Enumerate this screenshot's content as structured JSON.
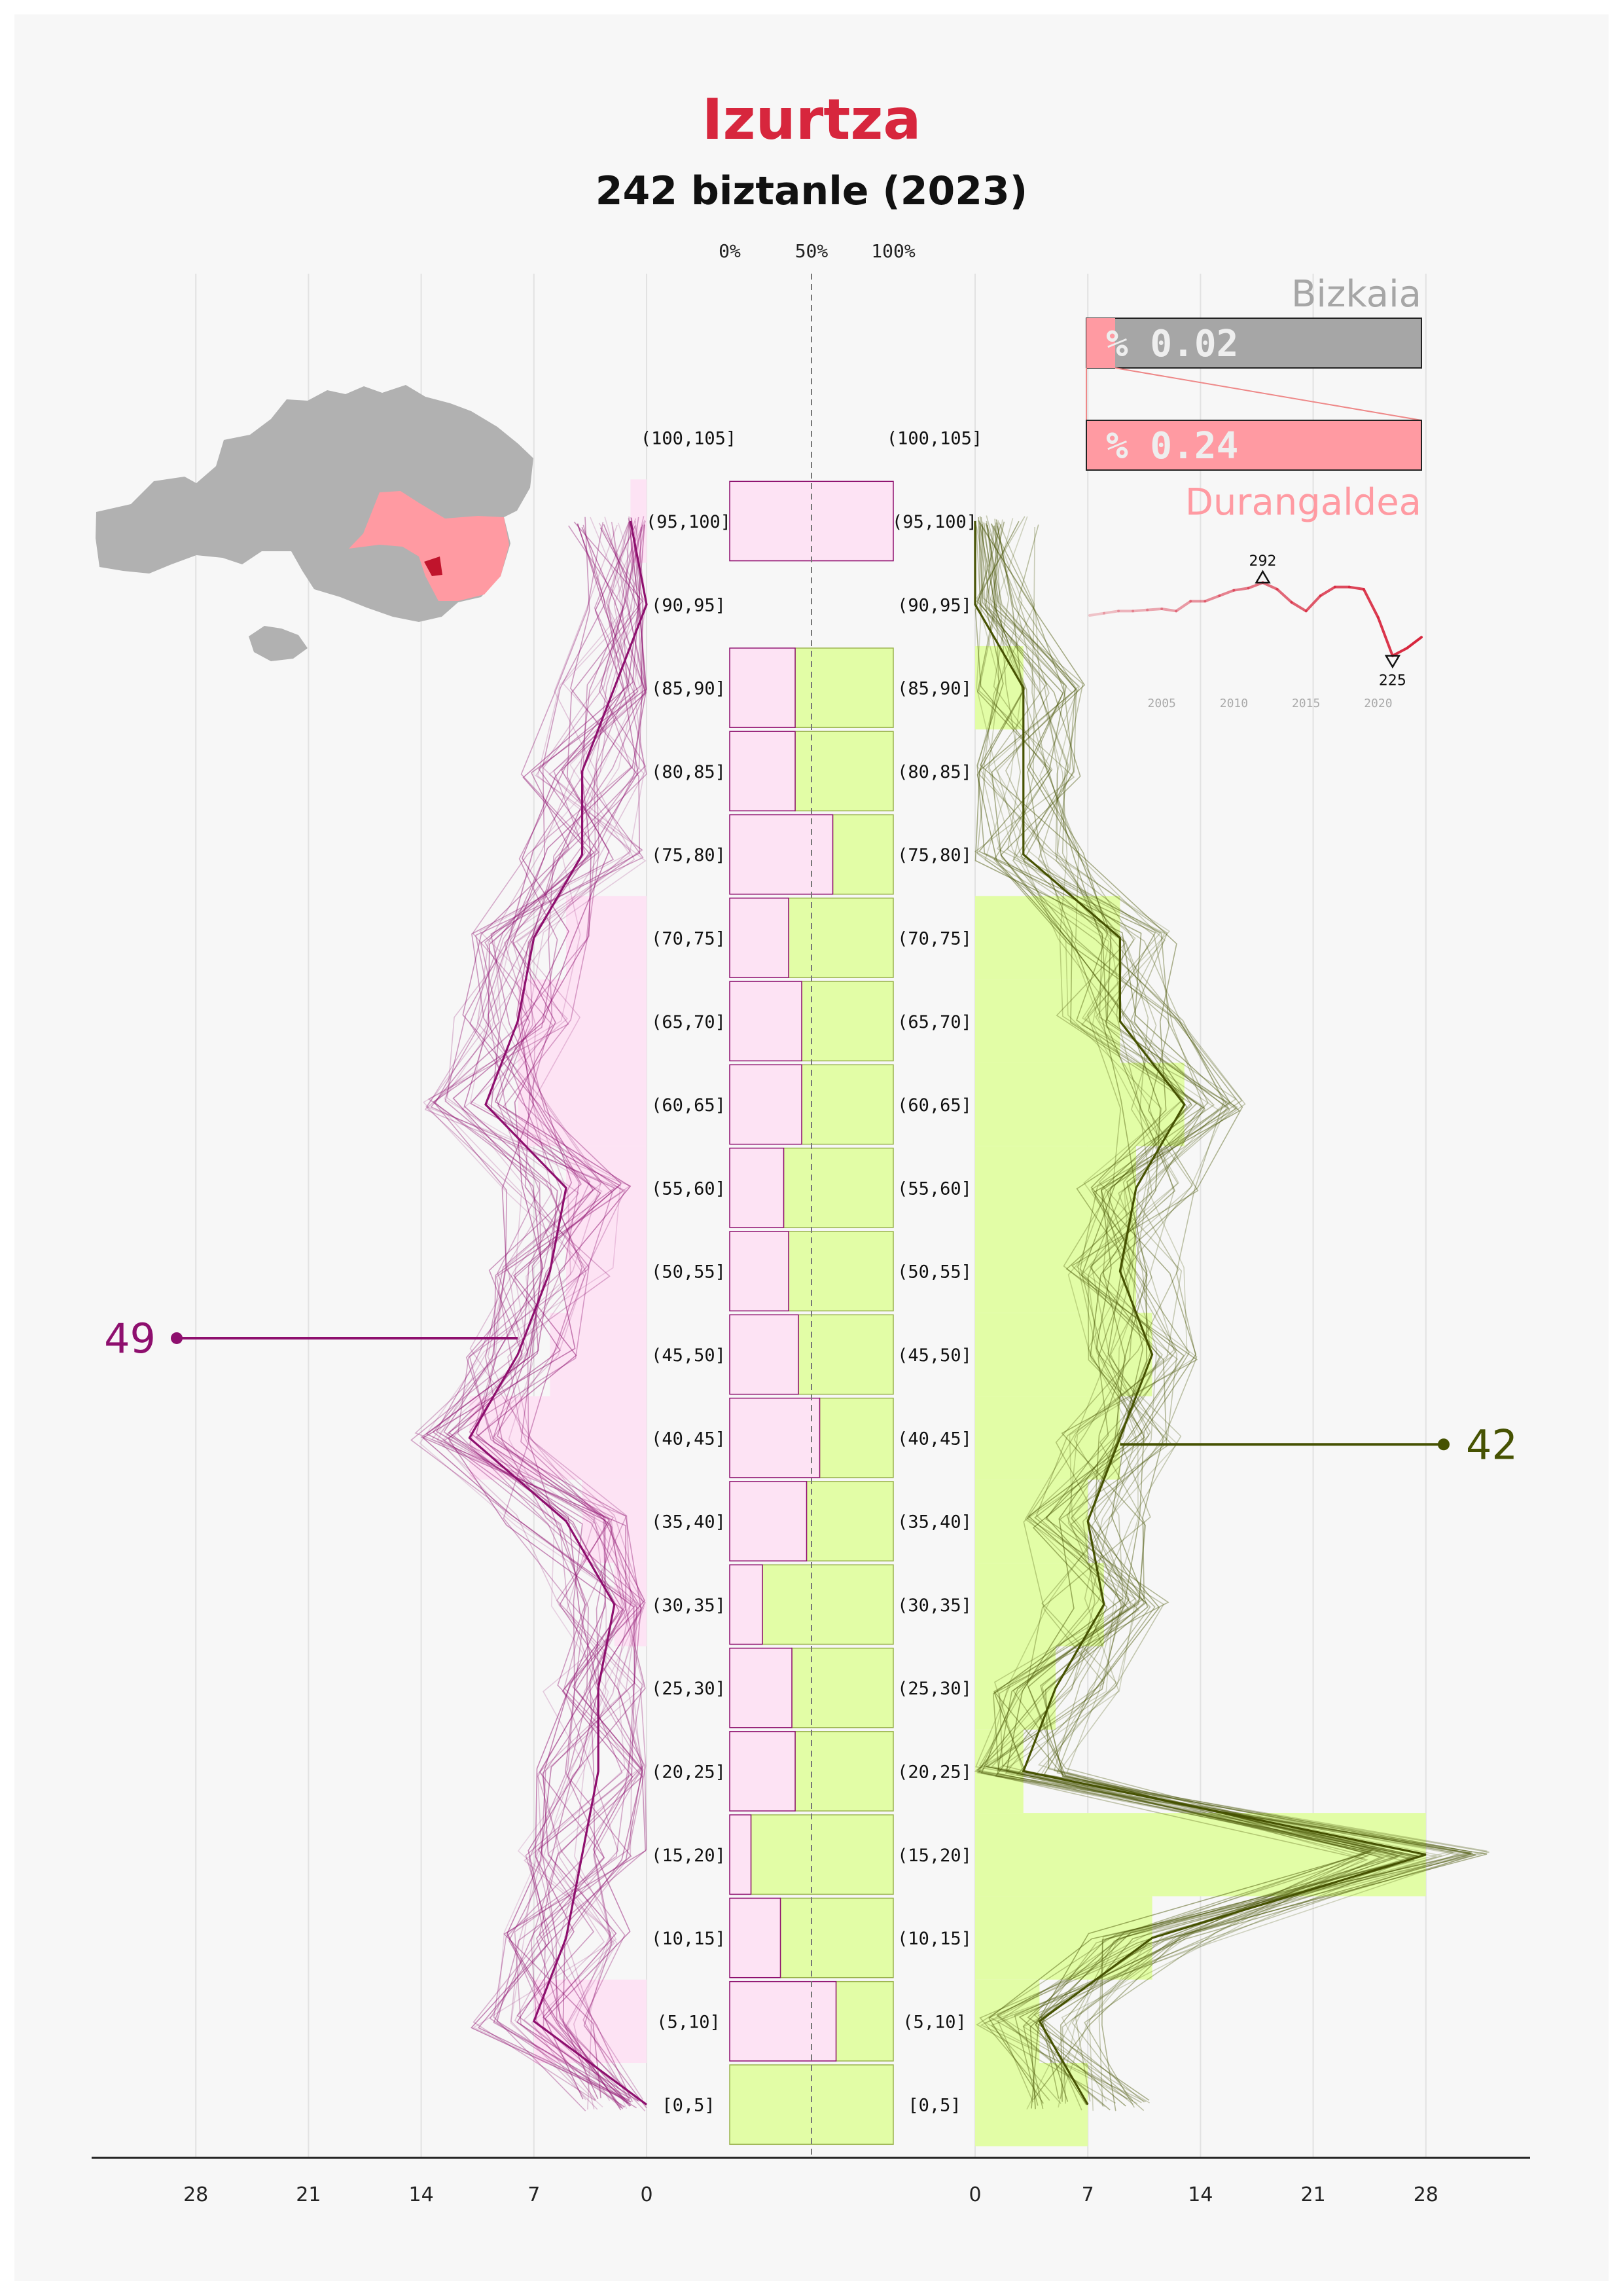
{
  "header": {
    "title": "Izurtza",
    "subtitle": "242 biztanle (2023)"
  },
  "colors": {
    "title": "#d7263d",
    "female_line": "#8e0f6e",
    "female_fill": "#fde3f4",
    "male_line": "#465202",
    "male_fill": "#e2fda6",
    "region": "#ff9aa2",
    "map_gray": "#b1b1b1",
    "bizkaia_bar": "#a6a6a6"
  },
  "map": {
    "icon": "bizkaia-map-icon"
  },
  "share": {
    "bizkaia_label": "Bizkaia",
    "bizkaia_value": "% 0.02",
    "bizkaia_fraction": 0.0002,
    "region_label": "Durangaldea",
    "region_value": "% 0.24",
    "region_fraction": 0.0024
  },
  "chart_data": [
    {
      "type": "bar",
      "orientation": "horizontal",
      "categories": [
        "[0,5]",
        "(5,10]",
        "(10,15]",
        "(15,20]",
        "(20,25]",
        "(25,30]",
        "(30,35]",
        "(35,40]",
        "(40,45]",
        "(45,50]",
        "(50,55]",
        "(55,60]",
        "(60,65]",
        "(65,70]",
        "(70,75]",
        "(75,80]",
        "(80,85]",
        "(85,90]",
        "(90,95]",
        "(95,100]",
        "(100,105]"
      ],
      "female": {
        "values": [
          0,
          7,
          0,
          0,
          0,
          0,
          2,
          4,
          11,
          6,
          5,
          5,
          8,
          8,
          5,
          0,
          0,
          0,
          0,
          1,
          0
        ],
        "history_line": [
          0,
          7,
          5,
          4,
          3,
          3,
          2,
          5,
          11,
          8,
          6,
          5,
          10,
          8,
          7,
          4,
          4,
          2,
          0,
          1,
          0
        ],
        "callout_value": "49"
      },
      "male": {
        "values": [
          7,
          4,
          11,
          28,
          3,
          5,
          8,
          7,
          9,
          11,
          10,
          10,
          13,
          9,
          9,
          0,
          0,
          3,
          0,
          0,
          0
        ],
        "history_line": [
          7,
          4,
          11,
          28,
          3,
          5,
          8,
          7,
          9,
          11,
          9,
          10,
          13,
          9,
          9,
          3,
          3,
          3,
          0,
          0,
          0
        ],
        "callout_value": "42"
      },
      "female_share_percent": [
        0,
        65,
        31,
        13,
        40,
        38,
        20,
        47,
        55,
        42,
        36,
        33,
        44,
        44,
        36,
        63,
        40,
        40,
        0,
        100,
        0
      ],
      "axis_ticks": [
        28,
        21,
        14,
        7,
        0
      ],
      "xlim": [
        0,
        28
      ],
      "share_axis_labels": [
        "0%",
        "50%",
        "100%"
      ]
    },
    {
      "type": "line",
      "x": [
        2000,
        2001,
        2002,
        2003,
        2004,
        2005,
        2006,
        2007,
        2008,
        2009,
        2010,
        2011,
        2012,
        2013,
        2014,
        2015,
        2016,
        2017,
        2018,
        2019,
        2020,
        2021,
        2022,
        2023
      ],
      "values": [
        262,
        264,
        266,
        266,
        267,
        268,
        266,
        275,
        275,
        280,
        285,
        287,
        292,
        286,
        274,
        266,
        280,
        288,
        288,
        286,
        260,
        225,
        232,
        242
      ],
      "x_tick_labels": [
        "2005",
        "2010",
        "2015",
        "2020"
      ],
      "max_label": "292",
      "min_label": "225"
    }
  ]
}
